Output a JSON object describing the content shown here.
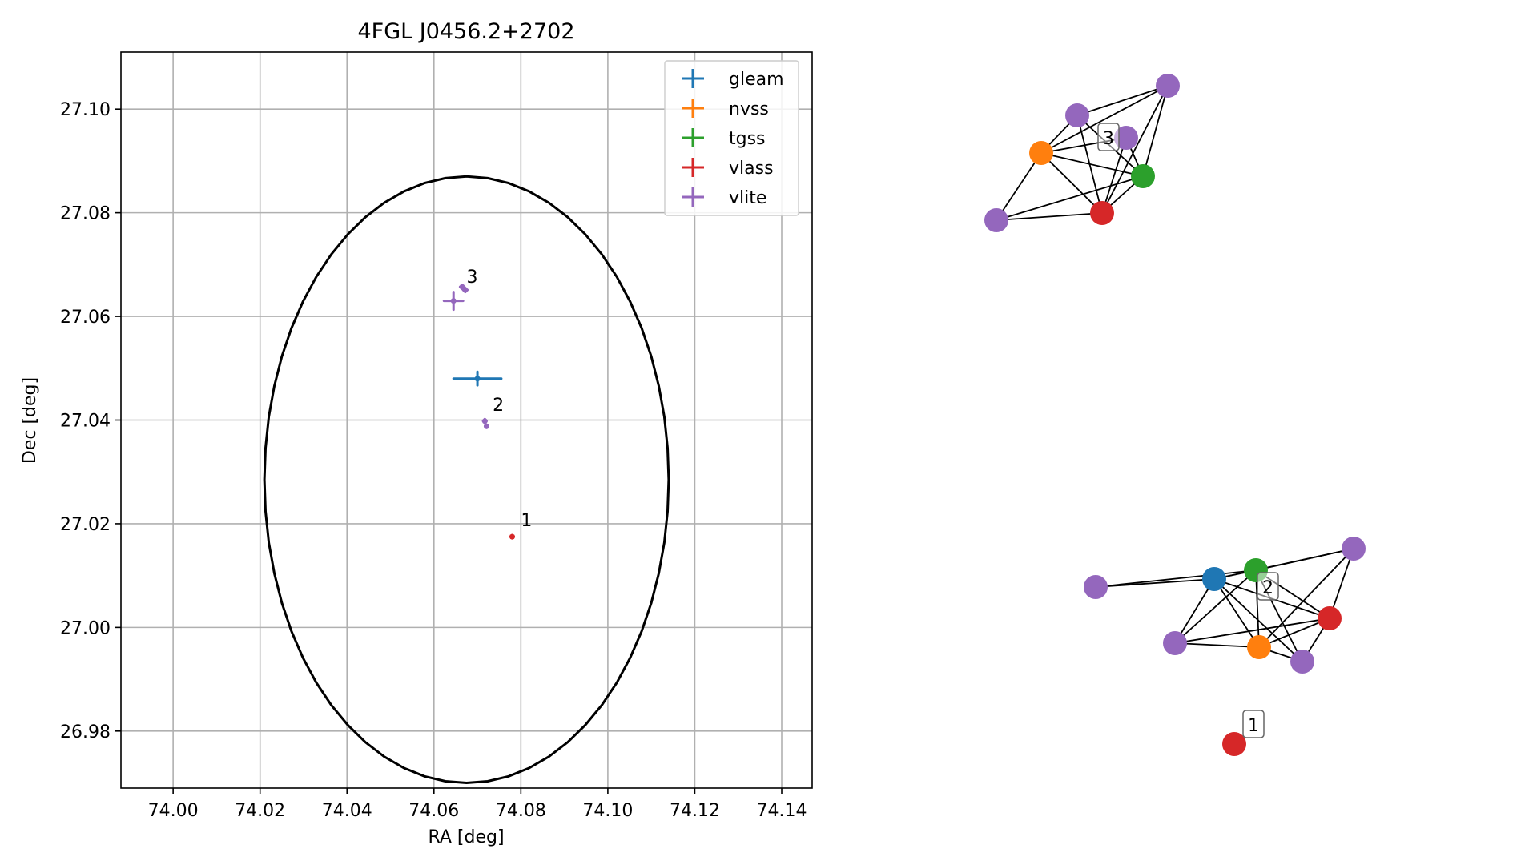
{
  "chart_data": [
    {
      "type": "scatter",
      "title": "4FGL J0456.2+2702",
      "xlabel": "RA [deg]",
      "ylabel": "Dec [deg]",
      "xlim": [
        73.988,
        74.147
      ],
      "ylim": [
        26.969,
        27.111
      ],
      "grid": true,
      "legend_position": "top-right",
      "x_ticks": [
        "74.00",
        "74.02",
        "74.04",
        "74.06",
        "74.08",
        "74.10",
        "74.12",
        "74.14"
      ],
      "y_ticks": [
        "26.98",
        "27.00",
        "27.02",
        "27.04",
        "27.06",
        "27.08",
        "27.10"
      ],
      "series": [
        {
          "name": "gleam",
          "color": "#1f77b4",
          "points": [
            {
              "x": 74.07,
              "y": 27.048,
              "xerr": 0.0055,
              "yerr": 0.0013
            }
          ]
        },
        {
          "name": "nvss",
          "color": "#ff7f0e",
          "points": []
        },
        {
          "name": "tgss",
          "color": "#2ca02c",
          "points": []
        },
        {
          "name": "vlass",
          "color": "#d62728",
          "points": [
            {
              "x": 74.078,
              "y": 27.0175,
              "xerr": 0.0002,
              "yerr": 0.0002
            }
          ]
        },
        {
          "name": "vlite",
          "color": "#9467bd",
          "points": [
            {
              "x": 74.0645,
              "y": 27.063,
              "xerr": 0.0022,
              "yerr": 0.0017
            },
            {
              "x": 74.0665,
              "y": 27.0657,
              "xerr": 0.0005,
              "yerr": 0.0004
            },
            {
              "x": 74.0672,
              "y": 27.0651,
              "xerr": 0.0005,
              "yerr": 0.0004
            },
            {
              "x": 74.0717,
              "y": 27.0398,
              "xerr": 0.0004,
              "yerr": 0.0004
            },
            {
              "x": 74.0721,
              "y": 27.0388,
              "xerr": 0.0003,
              "yerr": 0.0003
            }
          ]
        }
      ],
      "ellipse": {
        "center_x": 74.0675,
        "center_y": 27.0285,
        "semi_x": 0.0465,
        "semi_y": 0.0585,
        "color": "#000000"
      },
      "annotations": [
        {
          "text": "1",
          "x": 74.08,
          "y": 27.0195
        },
        {
          "text": "2",
          "x": 74.0735,
          "y": 27.0418
        },
        {
          "text": "3",
          "x": 74.0675,
          "y": 27.0665
        }
      ]
    },
    {
      "type": "network",
      "groups": [
        {
          "label": "3",
          "nodes": [
            {
              "id": "a",
              "survey": "vlite",
              "color": "#9467bd"
            },
            {
              "id": "b",
              "survey": "vlite",
              "color": "#9467bd"
            },
            {
              "id": "c",
              "survey": "vlite",
              "color": "#9467bd"
            },
            {
              "id": "d",
              "survey": "nvss",
              "color": "#ff7f0e"
            },
            {
              "id": "e",
              "survey": "tgss",
              "color": "#2ca02c"
            },
            {
              "id": "f",
              "survey": "vlite",
              "color": "#9467bd"
            },
            {
              "id": "g",
              "survey": "vlass",
              "color": "#d62728"
            }
          ],
          "edges": [
            [
              "a",
              "d"
            ],
            [
              "a",
              "e"
            ],
            [
              "a",
              "g"
            ],
            [
              "a",
              "b"
            ],
            [
              "b",
              "d"
            ],
            [
              "b",
              "g"
            ],
            [
              "b",
              "e"
            ],
            [
              "c",
              "d"
            ],
            [
              "c",
              "g"
            ],
            [
              "c",
              "e"
            ],
            [
              "d",
              "e"
            ],
            [
              "d",
              "g"
            ],
            [
              "d",
              "f"
            ],
            [
              "f",
              "g"
            ],
            [
              "f",
              "e"
            ],
            [
              "g",
              "e"
            ]
          ]
        },
        {
          "label": "2",
          "nodes": [
            {
              "id": "h",
              "survey": "vlite",
              "color": "#9467bd"
            },
            {
              "id": "i",
              "survey": "gleam",
              "color": "#1f77b4"
            },
            {
              "id": "j",
              "survey": "tgss",
              "color": "#2ca02c"
            },
            {
              "id": "k",
              "survey": "vlite",
              "color": "#9467bd"
            },
            {
              "id": "l",
              "survey": "vlass",
              "color": "#d62728"
            },
            {
              "id": "m",
              "survey": "vlite",
              "color": "#9467bd"
            },
            {
              "id": "n",
              "survey": "nvss",
              "color": "#ff7f0e"
            },
            {
              "id": "o",
              "survey": "vlite",
              "color": "#9467bd"
            }
          ],
          "edges": [
            [
              "h",
              "i"
            ],
            [
              "h",
              "j"
            ],
            [
              "i",
              "j"
            ],
            [
              "i",
              "k"
            ],
            [
              "i",
              "l"
            ],
            [
              "i",
              "m"
            ],
            [
              "i",
              "n"
            ],
            [
              "i",
              "o"
            ],
            [
              "j",
              "k"
            ],
            [
              "j",
              "l"
            ],
            [
              "j",
              "n"
            ],
            [
              "j",
              "o"
            ],
            [
              "j",
              "m"
            ],
            [
              "k",
              "l"
            ],
            [
              "k",
              "n"
            ],
            [
              "l",
              "m"
            ],
            [
              "l",
              "n"
            ],
            [
              "l",
              "o"
            ],
            [
              "m",
              "n"
            ],
            [
              "n",
              "o"
            ]
          ]
        },
        {
          "label": "1",
          "nodes": [
            {
              "id": "p",
              "survey": "vlass",
              "color": "#d62728"
            }
          ],
          "edges": []
        }
      ]
    }
  ]
}
